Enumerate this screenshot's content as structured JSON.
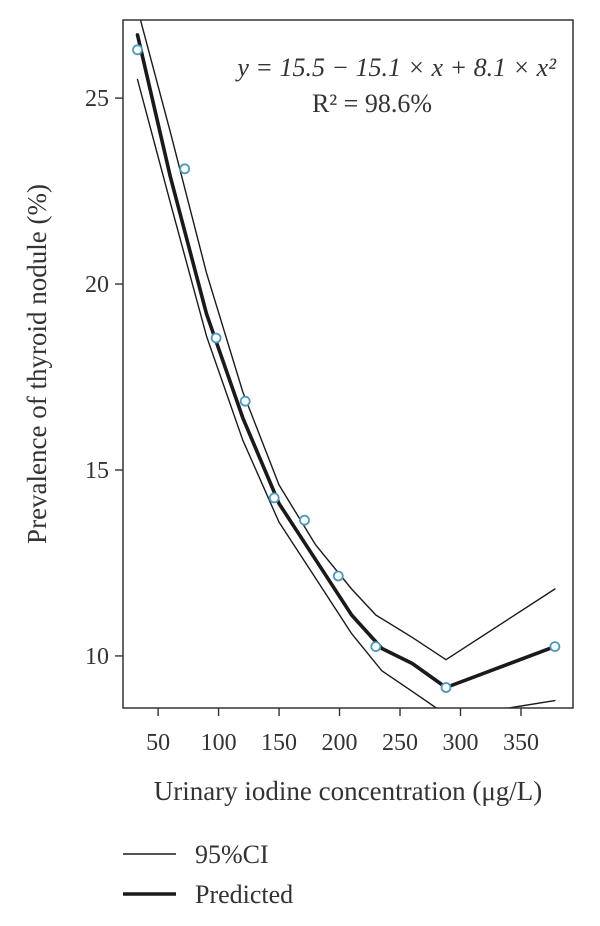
{
  "chart_data": {
    "type": "line",
    "xlabel": "Urinary iodine concentration (μg/L)",
    "ylabel": "Prevalence of thyroid nodule (%)",
    "xlim": [
      21,
      393
    ],
    "ylim": [
      8.6,
      27.1
    ],
    "x_ticks": [
      50,
      100,
      150,
      200,
      250,
      300,
      350
    ],
    "y_ticks": [
      10,
      15,
      20,
      25
    ],
    "annotations": {
      "equation": "y = 15.5 − 15.1 × x + 8.1 × x²",
      "r_squared": "R² = 98.6%"
    },
    "observed": {
      "x": [
        33,
        72,
        98,
        122,
        146,
        171,
        199,
        230,
        288,
        378
      ],
      "y": [
        26.3,
        23.1,
        18.55,
        16.85,
        14.25,
        13.65,
        12.15,
        10.25,
        9.15,
        10.25
      ]
    },
    "series": [
      {
        "name": "Predicted",
        "style": "thick",
        "x": [
          33,
          60,
          90,
          120,
          150,
          180,
          210,
          235,
          260,
          288,
          378
        ],
        "y": [
          26.7,
          22.9,
          19.2,
          16.4,
          14.1,
          12.6,
          11.1,
          10.2,
          9.8,
          9.15,
          10.25
        ]
      },
      {
        "name": "95%CI",
        "style": "thin",
        "x": [
          33,
          60,
          90,
          120,
          150,
          180,
          210,
          230,
          260,
          288,
          378
        ],
        "y": [
          27.4,
          24.1,
          20.3,
          17.1,
          14.6,
          13.0,
          11.8,
          11.1,
          10.5,
          9.9,
          11.8
        ]
      },
      {
        "name": "95%CI",
        "style": "thin",
        "x": [
          33,
          60,
          90,
          120,
          150,
          180,
          210,
          235,
          260,
          280,
          310,
          340,
          378
        ],
        "y": [
          25.5,
          22.2,
          18.6,
          15.8,
          13.6,
          12.1,
          10.6,
          9.6,
          9.05,
          8.6,
          8.5,
          8.6,
          8.8
        ]
      }
    ],
    "legend": {
      "position": "below",
      "items": [
        {
          "label": "95%CI",
          "style": "thin"
        },
        {
          "label": "Predicted",
          "style": "thick"
        }
      ]
    },
    "colors": {
      "line": "#1a1a1a",
      "marker": "#4a9bbf",
      "axis": "#333333"
    },
    "grid": false
  }
}
